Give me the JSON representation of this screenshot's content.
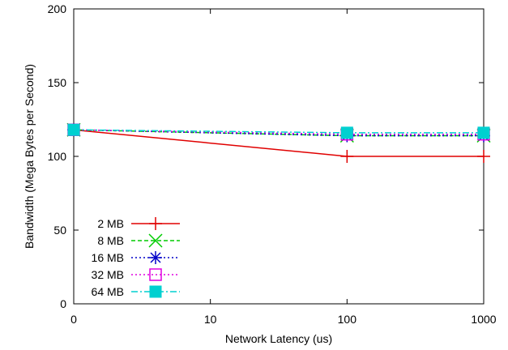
{
  "chart_data": {
    "type": "line",
    "xlabel": "Network Latency (us)",
    "ylabel": "Bandwidth (Mega Bytes per Second)",
    "x_ticks": [
      "0",
      "10",
      "100",
      "1000"
    ],
    "y_ticks": [
      0,
      50,
      100,
      150,
      200
    ],
    "ylim": [
      0,
      200
    ],
    "x": [
      0,
      100,
      1000
    ],
    "grid": false,
    "legend_position": "bottom-left",
    "series": [
      {
        "name": "2 MB",
        "values": [
          118,
          100,
          100
        ],
        "color": "#e00000",
        "dash": "solid",
        "marker": "plus"
      },
      {
        "name": "8 MB",
        "values": [
          118,
          114,
          114
        ],
        "color": "#00cc00",
        "dash": "dashed",
        "marker": "cross"
      },
      {
        "name": "16 MB",
        "values": [
          118,
          114,
          114
        ],
        "color": "#0000c8",
        "dash": "dotted",
        "marker": "star"
      },
      {
        "name": "32 MB",
        "values": [
          118,
          115,
          115
        ],
        "color": "#e000e0",
        "dash": "dotted",
        "marker": "open-square"
      },
      {
        "name": "64 MB",
        "values": [
          118,
          116,
          116
        ],
        "color": "#00d0d0",
        "dash": "dashdot",
        "marker": "filled-square"
      }
    ]
  }
}
